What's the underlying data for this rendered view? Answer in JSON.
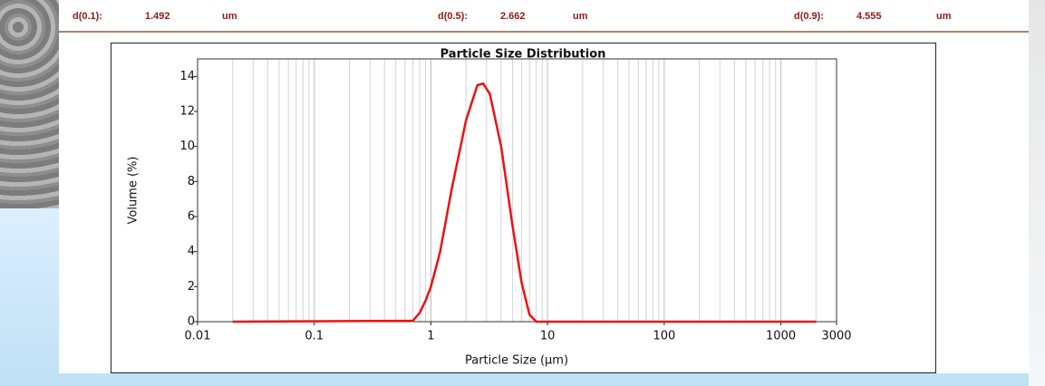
{
  "header": {
    "fields": [
      {
        "label": "d(0.1):",
        "value": "1.492",
        "unit": "um"
      },
      {
        "label": "d(0.5):",
        "value": "2.662",
        "unit": "um"
      },
      {
        "label": "d(0.9):",
        "value": "4.555",
        "unit": "um"
      }
    ]
  },
  "chart_data": {
    "type": "line",
    "title": "Particle Size Distribution",
    "xlabel": "Particle Size (μm)",
    "ylabel": "Volume (%)",
    "xscale": "log",
    "xgrid": true,
    "x_minor_grid": true,
    "ygrid": false,
    "xlim": [
      0.01,
      3000
    ],
    "xticks": [
      0.01,
      0.1,
      1,
      10,
      100,
      1000,
      3000
    ],
    "ylim": [
      0,
      15
    ],
    "yticks": [
      0,
      2,
      4,
      6,
      8,
      10,
      12,
      14
    ],
    "x": [
      0.02,
      0.7,
      0.8,
      0.9,
      1,
      1.2,
      1.5,
      2,
      2.5,
      2.8,
      3.2,
      4,
      5,
      6,
      7,
      8,
      2000
    ],
    "series": [
      {
        "color": "#ee1111",
        "values": [
          0,
          0.05,
          0.5,
          1.2,
          2,
          4,
          7.5,
          11.5,
          13.5,
          13.6,
          13,
          10,
          5.5,
          2.2,
          0.4,
          0,
          0
        ]
      }
    ]
  }
}
